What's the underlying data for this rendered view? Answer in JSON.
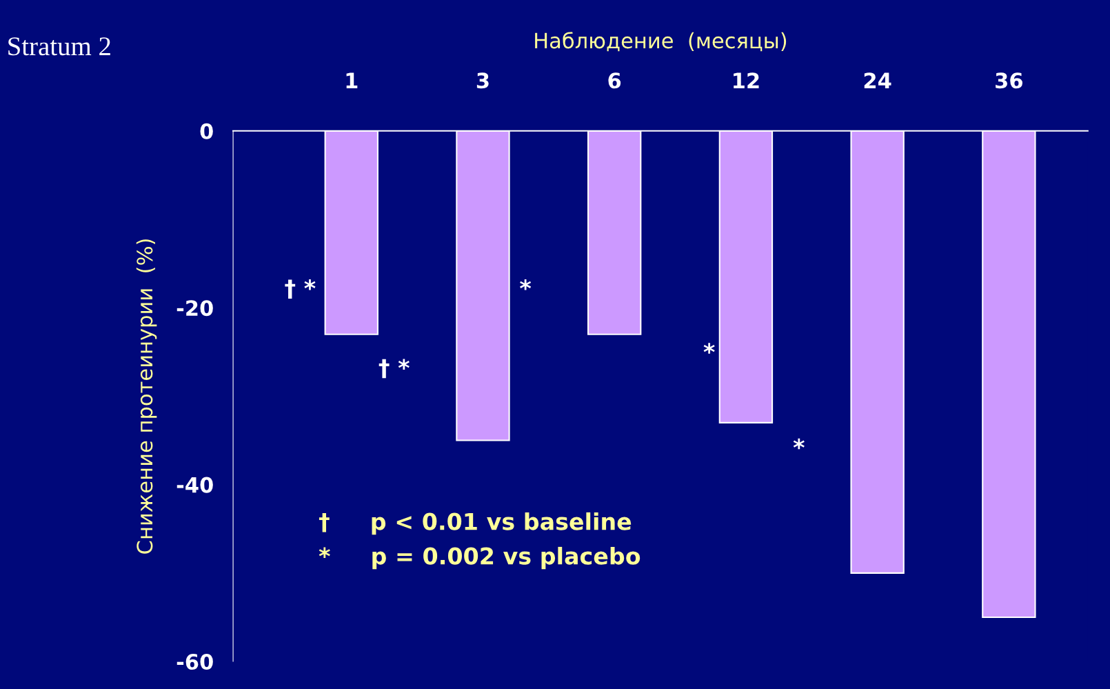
{
  "chart_data": {
    "type": "bar",
    "title": "Stratum 2",
    "xlabel": "Наблюдение  (месяцы)",
    "ylabel": "Снижение протеинурии  (%)",
    "categories": [
      "1",
      "3",
      "6",
      "12",
      "24",
      "36"
    ],
    "values": [
      -23,
      -35,
      -23,
      -33,
      -50,
      -55
    ],
    "color": "#cc99ff",
    "ylim": [
      -60,
      0
    ],
    "yticks": [
      0,
      -20,
      -40,
      -60
    ],
    "grid": false,
    "legend": false,
    "annotations": [
      "† *",
      "*",
      "† *",
      "*",
      "*",
      "†     p < 0.01 vs baseline",
      "*     p = 0.002 vs placebo"
    ]
  }
}
